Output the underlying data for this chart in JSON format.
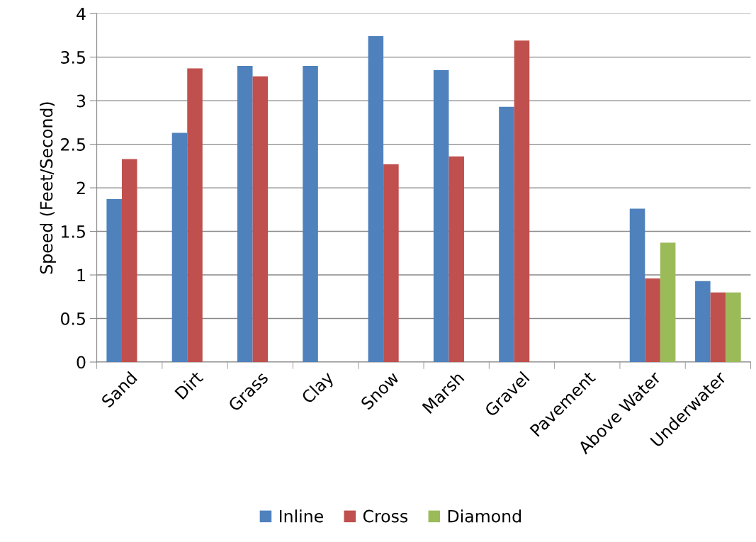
{
  "chart_data": {
    "type": "bar",
    "ylabel": "Speed (Feet/Second)",
    "categories": [
      "Sand",
      "Dirt",
      "Grass",
      "Clay",
      "Snow",
      "Marsh",
      "Gravel",
      "Pavement",
      "Above Water",
      "Underwater"
    ],
    "series": [
      {
        "name": "Inline",
        "color": "#4f81bd",
        "values": [
          1.87,
          2.63,
          3.4,
          3.4,
          3.74,
          3.35,
          2.93,
          null,
          1.76,
          0.93
        ]
      },
      {
        "name": "Cross",
        "color": "#c0504d",
        "values": [
          2.33,
          3.37,
          3.28,
          null,
          2.27,
          2.36,
          3.69,
          null,
          0.96,
          0.8
        ]
      },
      {
        "name": "Diamond",
        "color": "#9bbb59",
        "values": [
          null,
          null,
          null,
          null,
          null,
          null,
          null,
          null,
          1.37,
          0.8
        ]
      }
    ],
    "ylim": [
      0,
      4
    ],
    "yticks": [
      0,
      0.5,
      1,
      1.5,
      2,
      2.5,
      3,
      3.5,
      4
    ],
    "grid": "y",
    "legend": "bottom"
  }
}
